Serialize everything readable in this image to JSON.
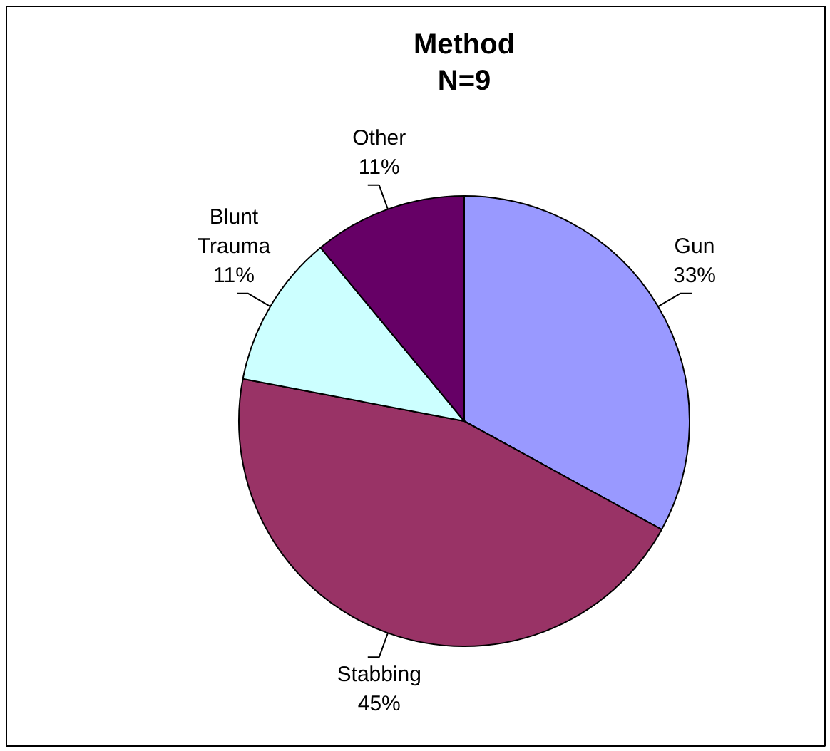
{
  "chart_data": {
    "type": "pie",
    "title": "Method\nN=9",
    "categories": [
      "Gun",
      "Stabbing",
      "Blunt Trauma",
      "Other"
    ],
    "values": [
      33,
      45,
      11,
      11
    ],
    "value_labels": [
      "33%",
      "45%",
      "11%",
      "11%"
    ],
    "colors": [
      "#9999ff",
      "#993366",
      "#ccffff",
      "#660066"
    ]
  }
}
